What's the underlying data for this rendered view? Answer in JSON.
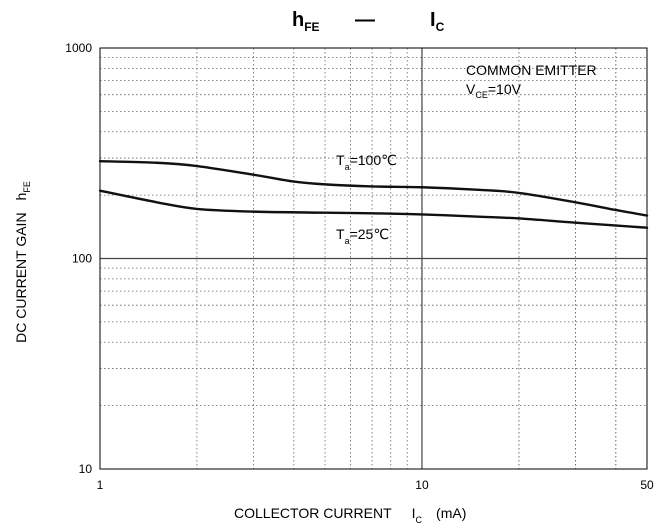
{
  "chart_data": {
    "type": "line",
    "title": {
      "main": "h",
      "main_sub": "FE",
      "dash": "—",
      "second": "I",
      "second_sub": "C"
    },
    "xlabel": {
      "text": "COLLECTOR CURRENT",
      "symbol": "I",
      "symbol_sub": "C",
      "unit": "(mA)"
    },
    "ylabel": {
      "text": "DC CURRENT GAIN",
      "symbol": "h",
      "symbol_sub": "FE"
    },
    "x_scale": "log",
    "y_scale": "log",
    "xlim": [
      1,
      50
    ],
    "ylim": [
      10,
      1000
    ],
    "x_ticks": [
      {
        "value": 1,
        "label": "1"
      },
      {
        "value": 10,
        "label": "10"
      },
      {
        "value": 50,
        "label": "50"
      }
    ],
    "y_ticks": [
      {
        "value": 10,
        "label": "10"
      },
      {
        "value": 100,
        "label": "100"
      },
      {
        "value": 1000,
        "label": "1000"
      }
    ],
    "grid": true,
    "annotation": {
      "line1": "COMMON EMITTER",
      "line2_symbol": "V",
      "line2_sub": "CE",
      "line2_value": "=10V"
    },
    "series": [
      {
        "name": "T_a=100°C",
        "label": {
          "symbol": "T",
          "sub": "a",
          "value": "=100℃"
        },
        "x": [
          1,
          1.5,
          2,
          3,
          4,
          5,
          7,
          10,
          15,
          20,
          30,
          40,
          50
        ],
        "y": [
          290,
          285,
          275,
          250,
          232,
          225,
          220,
          218,
          212,
          205,
          185,
          170,
          160
        ]
      },
      {
        "name": "T_a=25°C",
        "label": {
          "symbol": "T",
          "sub": "a",
          "value": "=25℃"
        },
        "x": [
          1,
          1.5,
          2,
          3,
          5,
          7,
          10,
          15,
          20,
          30,
          50
        ],
        "y": [
          210,
          185,
          172,
          167,
          165,
          164,
          162,
          158,
          155,
          148,
          140
        ]
      }
    ]
  }
}
